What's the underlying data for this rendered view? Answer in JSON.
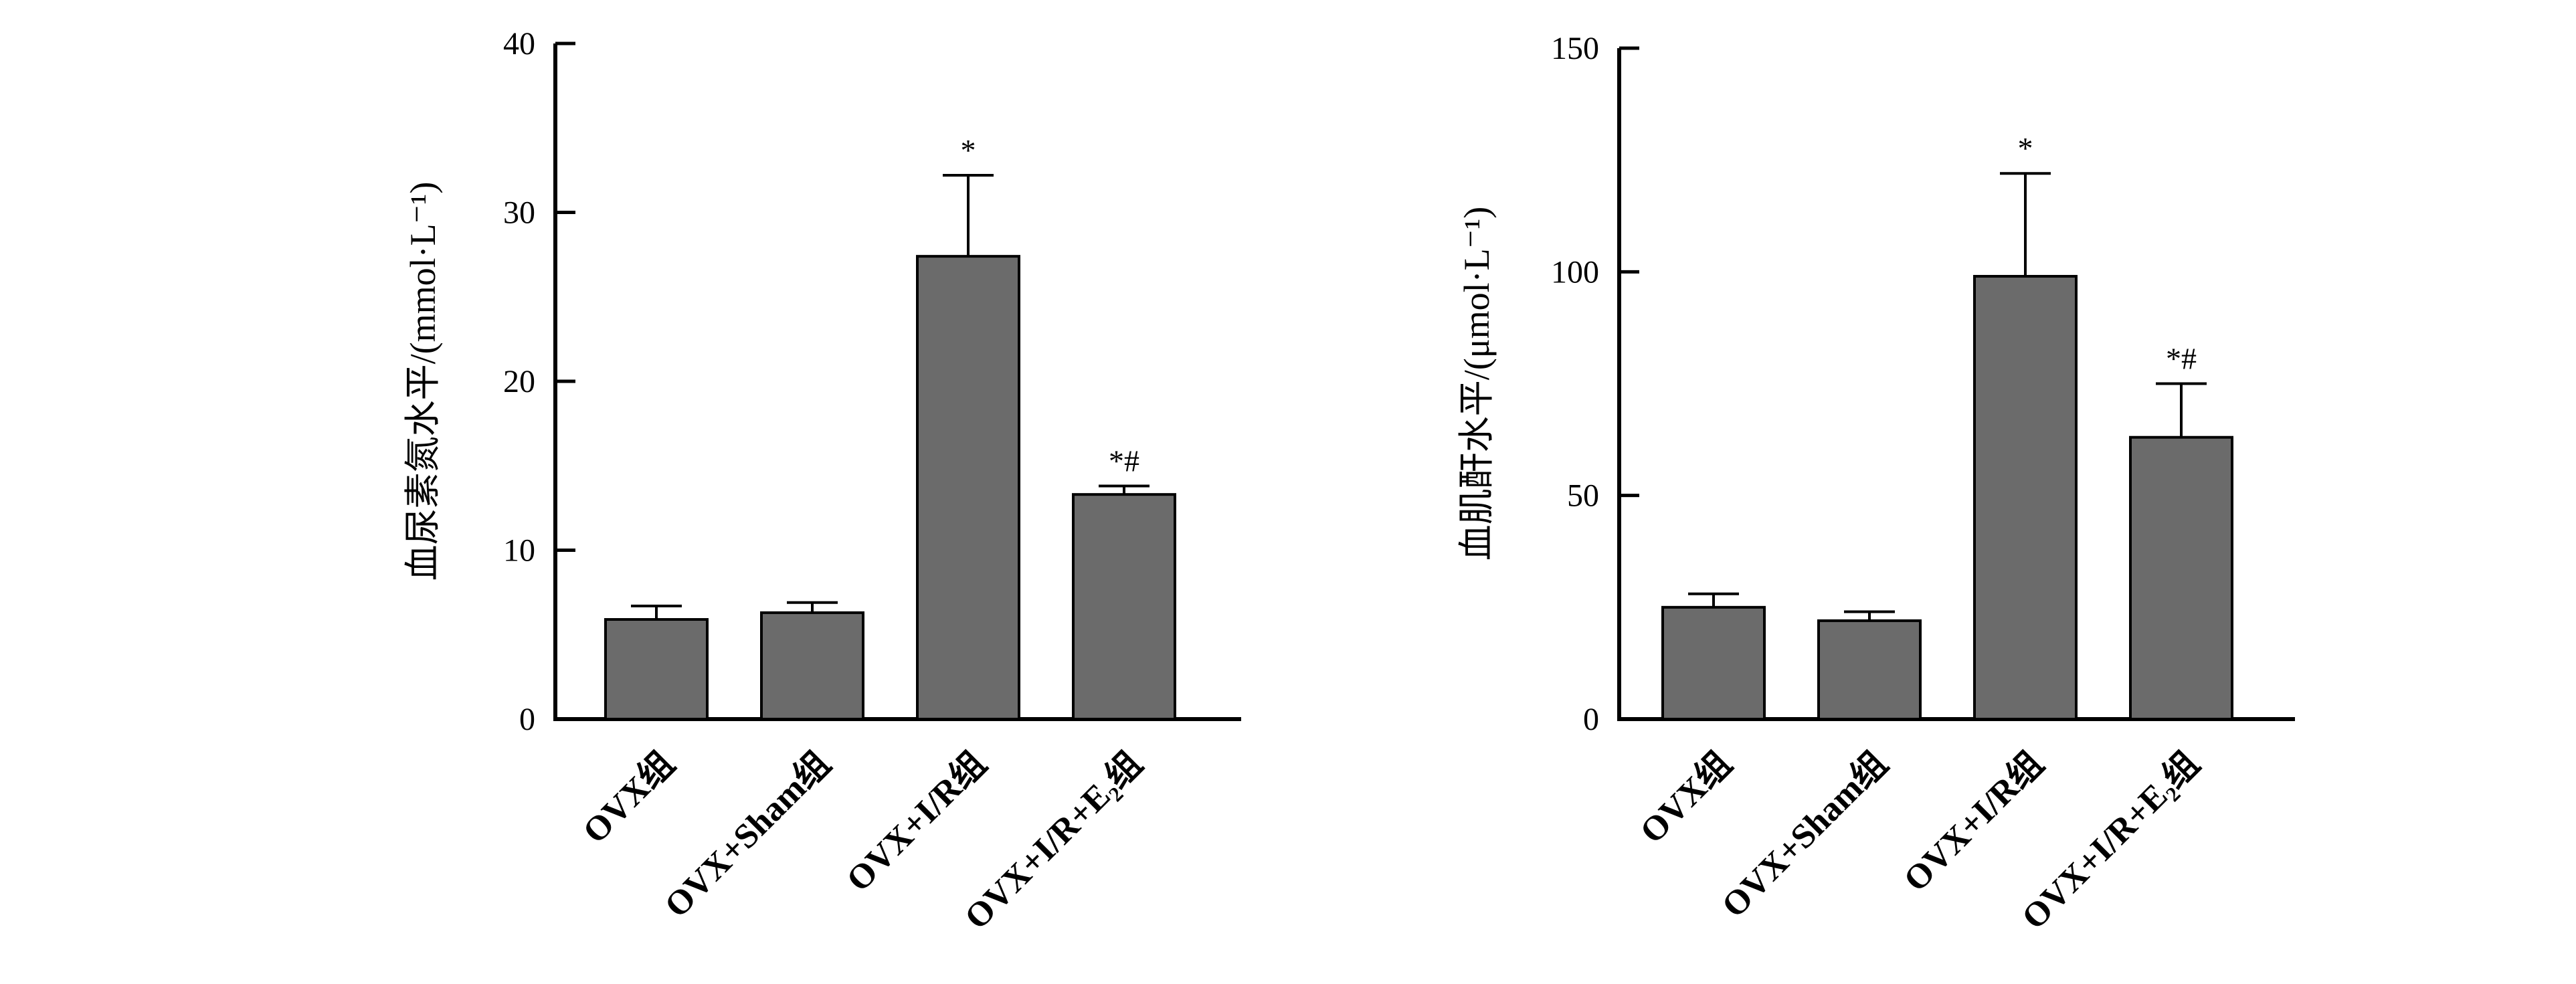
{
  "chart_data": [
    {
      "type": "bar",
      "categories": [
        "OVX组",
        "OVX+Sham组",
        "OVX+I/R组",
        "OVX+I/R+E₂组"
      ],
      "values": [
        5.9,
        6.3,
        27.4,
        13.3
      ],
      "errors": [
        0.8,
        0.6,
        4.8,
        0.5
      ],
      "annotations": [
        "",
        "",
        "*",
        "*#"
      ],
      "ylabel": "血尿素氮水平/(mmol·L⁻¹)",
      "ylim": [
        0,
        40
      ],
      "yticks": [
        0,
        10,
        20,
        30,
        40
      ],
      "bar_color": "#6b6b6b"
    },
    {
      "type": "bar",
      "categories": [
        "OVX组",
        "OVX+Sham组",
        "OVX+I/R组",
        "OVX+I/R+E₂组"
      ],
      "values": [
        25,
        22,
        99,
        63
      ],
      "errors": [
        3,
        2,
        23,
        12
      ],
      "annotations": [
        "",
        "",
        "*",
        "*#"
      ],
      "ylabel": "血肌酐水平/(μmol·L⁻¹)",
      "ylim": [
        0,
        150
      ],
      "yticks": [
        0,
        50,
        100,
        150
      ],
      "bar_color": "#6b6b6b"
    }
  ]
}
